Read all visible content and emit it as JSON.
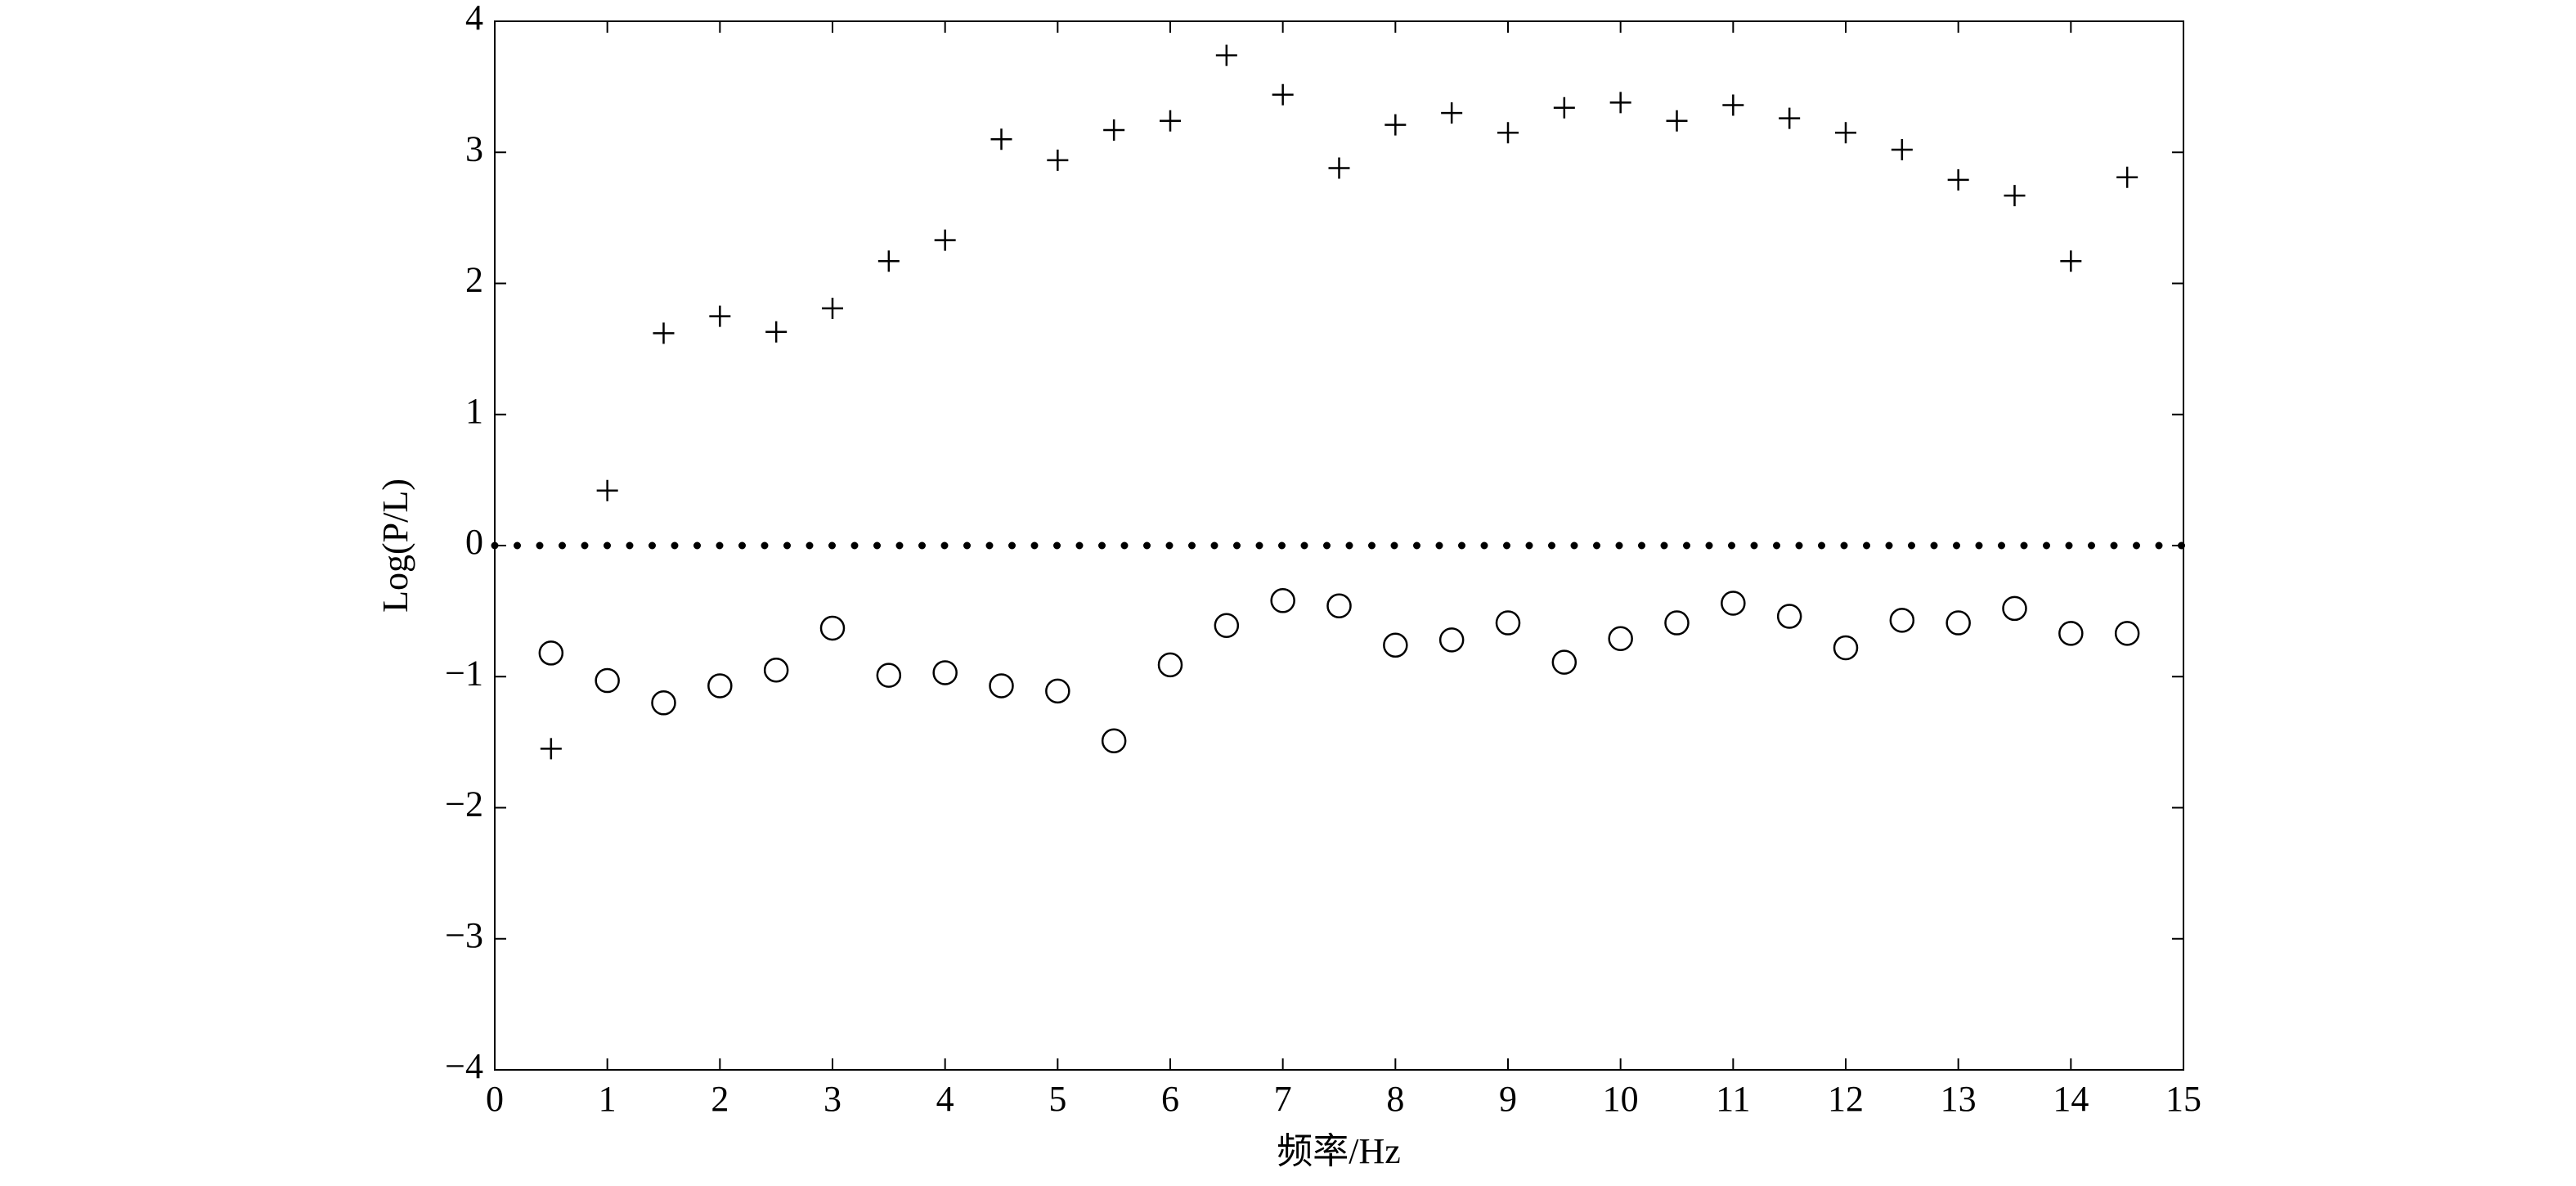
{
  "chart_data": {
    "type": "scatter",
    "x_label": "频率/Hz",
    "y_label": "Log(P/L)",
    "xlim": [
      0,
      15
    ],
    "ylim": [
      -4,
      4
    ],
    "xticks": [
      0,
      1,
      2,
      3,
      4,
      5,
      6,
      7,
      8,
      9,
      10,
      11,
      12,
      13,
      14,
      15
    ],
    "yticks": [
      {
        "value": -4,
        "label": "−4"
      },
      {
        "value": -3,
        "label": "−3"
      },
      {
        "value": -2,
        "label": "−2"
      },
      {
        "value": -1,
        "label": "−1"
      },
      0,
      1,
      2,
      3,
      4
    ],
    "reference_line": {
      "y": 0,
      "style": "dotted",
      "color": "#000000"
    },
    "x": [
      0.5,
      1,
      1.5,
      2,
      2.5,
      3,
      3.5,
      4,
      4.5,
      5,
      5.5,
      6,
      6.5,
      7,
      7.5,
      8,
      8.5,
      9,
      9.5,
      10,
      10.5,
      11,
      11.5,
      12,
      12.5,
      13,
      13.5,
      14,
      14.5
    ],
    "series": [
      {
        "marker": "plus",
        "color": "#000000",
        "values": [
          -1.55,
          0.42,
          1.62,
          1.75,
          1.63,
          1.81,
          2.17,
          2.33,
          3.1,
          2.94,
          3.17,
          3.24,
          3.74,
          3.44,
          2.88,
          3.21,
          3.3,
          3.15,
          3.34,
          3.38,
          3.24,
          3.36,
          3.26,
          3.15,
          3.02,
          2.79,
          2.67,
          2.17,
          2.81
        ]
      },
      {
        "marker": "circle",
        "color": "#000000",
        "values": [
          -0.82,
          -1.03,
          -1.2,
          -1.07,
          -0.95,
          -0.63,
          -0.99,
          -0.97,
          -1.07,
          -1.11,
          -1.49,
          -0.91,
          -0.61,
          -0.42,
          -0.46,
          -0.76,
          -0.72,
          -0.59,
          -0.89,
          -0.71,
          -0.59,
          -0.44,
          -0.54,
          -0.78,
          -0.57,
          -0.59,
          -0.48,
          -0.67,
          -0.67
        ]
      }
    ]
  }
}
